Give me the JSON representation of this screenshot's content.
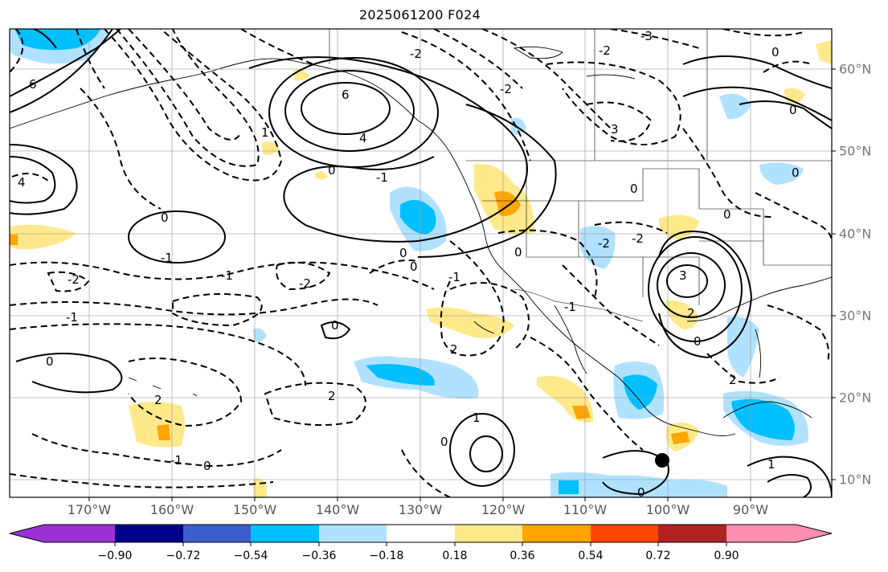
{
  "title": "2025061200 F024",
  "lon_labels": [
    "170°W",
    "160°W",
    "150°W",
    "140°W",
    "130°W",
    "120°W",
    "110°W",
    "100°W",
    "90°W"
  ],
  "lat_labels": [
    "60°N",
    "50°N",
    "40°N",
    "30°N",
    "20°N",
    "10°N"
  ],
  "colorbar": {
    "ticks": [
      "−0.90",
      "−0.72",
      "−0.54",
      "−0.36",
      "−0.18",
      "0.18",
      "0.36",
      "0.54",
      "0.72",
      "0.90"
    ],
    "colors": [
      "#9b30d9",
      "#00008b",
      "#3a5fcd",
      "#00bfff",
      "#b0e2ff",
      "#ffffff",
      "#ffe98a",
      "#ffa500",
      "#ff4500",
      "#b22222",
      "#ff8fb1"
    ]
  },
  "contour_labels": [
    "6",
    "4",
    "3",
    "0",
    "-1",
    "-2",
    "1",
    "2",
    "-3"
  ],
  "marker": "tropical-cyclone-position"
}
